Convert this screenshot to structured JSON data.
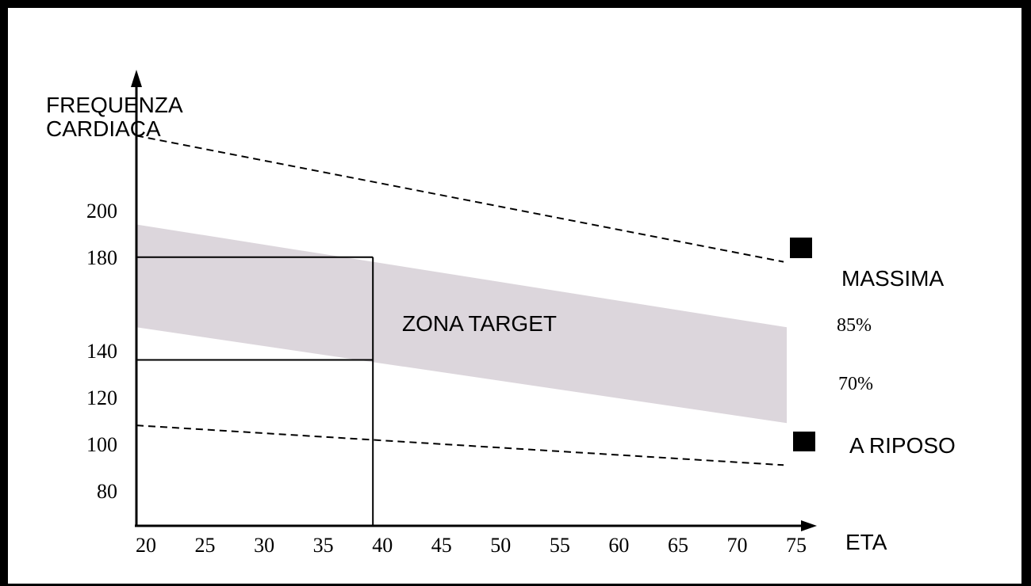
{
  "chart_data": {
    "type": "line",
    "ylabel_lines": [
      "FREQUENZA",
      "CARDIACA"
    ],
    "xlabel": "ETA",
    "x_ticks": [
      20,
      25,
      30,
      35,
      40,
      45,
      50,
      55,
      60,
      65,
      70,
      75
    ],
    "y_ticks": [
      {
        "value": 200,
        "label": "200"
      },
      {
        "value": 180,
        "label": "180"
      },
      {
        "value": 140,
        "label": "140"
      },
      {
        "value": 120,
        "label": "120"
      },
      {
        "value": 100,
        "label": "100"
      },
      {
        "value": 80,
        "label": "80"
      }
    ],
    "series": [
      {
        "name": "MASSIMA",
        "style": "dashed",
        "x": [
          20,
          75
        ],
        "y": [
          232,
          178
        ]
      },
      {
        "name": "A RIPOSO",
        "style": "dashed",
        "x": [
          20,
          75
        ],
        "y": [
          108,
          91
        ]
      }
    ],
    "target_band": {
      "color": "#dcd6dc",
      "upper": {
        "name": "85%",
        "x": [
          20,
          75
        ],
        "y": [
          194,
          150
        ]
      },
      "lower": {
        "name": "70%",
        "x": [
          20,
          75
        ],
        "y": [
          150,
          109
        ]
      }
    },
    "example_box": {
      "label": "ZONA TARGET",
      "x": 40,
      "y_top": 180,
      "y_bottom": 136
    },
    "percent_labels": [
      "85%",
      "70%"
    ]
  }
}
